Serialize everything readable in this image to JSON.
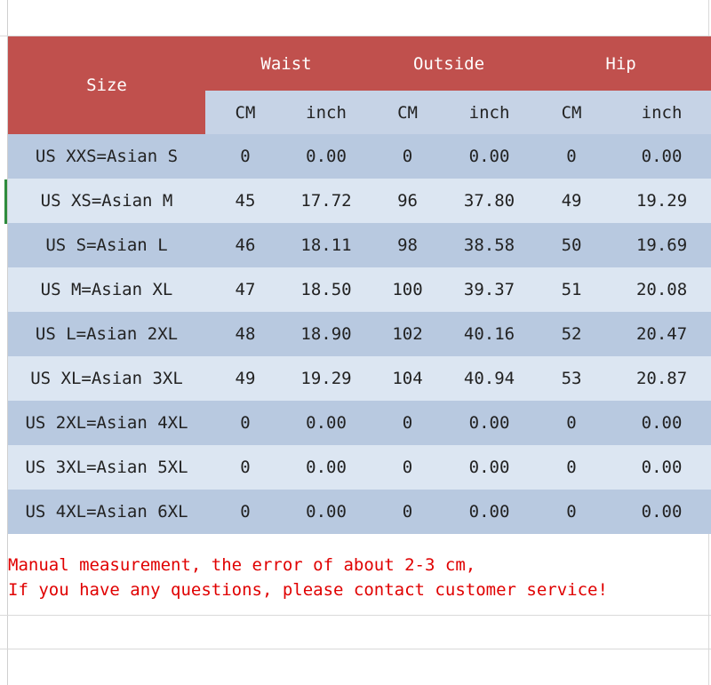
{
  "table": {
    "header": {
      "size_label": "Size",
      "groups": [
        "Waist",
        "Outside",
        "Hip"
      ],
      "units": [
        "CM",
        "inch",
        "CM",
        "inch",
        "CM",
        "inch"
      ]
    },
    "rows": [
      [
        "US XXS=Asian S",
        "0",
        "0.00",
        "0",
        "0.00",
        "0",
        "0.00"
      ],
      [
        "US XS=Asian M",
        "45",
        "17.72",
        "96",
        "37.80",
        "49",
        "19.29"
      ],
      [
        "US S=Asian L",
        "46",
        "18.11",
        "98",
        "38.58",
        "50",
        "19.69"
      ],
      [
        "US M=Asian XL",
        "47",
        "18.50",
        "100",
        "39.37",
        "51",
        "20.08"
      ],
      [
        "US L=Asian 2XL",
        "48",
        "18.90",
        "102",
        "40.16",
        "52",
        "20.47"
      ],
      [
        "US XL=Asian 3XL",
        "49",
        "19.29",
        "104",
        "40.94",
        "53",
        "20.87"
      ],
      [
        "US 2XL=Asian 4XL",
        "0",
        "0.00",
        "0",
        "0.00",
        "0",
        "0.00"
      ],
      [
        "US 3XL=Asian 5XL",
        "0",
        "0.00",
        "0",
        "0.00",
        "0",
        "0.00"
      ],
      [
        "US 4XL=Asian 6XL",
        "0",
        "0.00",
        "0",
        "0.00",
        "0",
        "0.00"
      ]
    ]
  },
  "notes": {
    "line1": "Manual measurement, the error of about 2-3 cm,",
    "line2": "If you have any questions, please contact customer service!"
  },
  "colors": {
    "header_red": "#c0504d",
    "row_dark": "#b8c9e0",
    "row_light": "#dce6f2",
    "note_red": "#e00000"
  }
}
